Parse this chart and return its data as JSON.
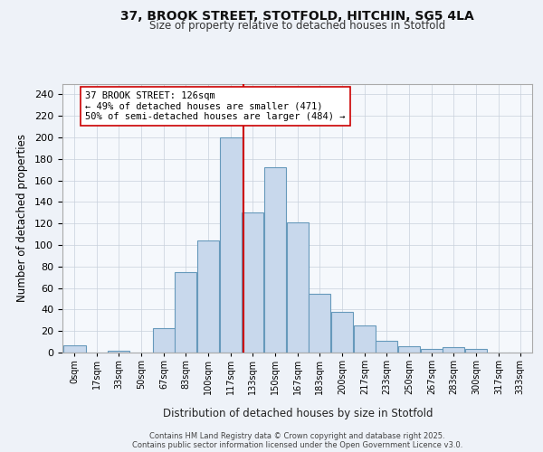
{
  "title1": "37, BROOK STREET, STOTFOLD, HITCHIN, SG5 4LA",
  "title2": "Size of property relative to detached houses in Stotfold",
  "xlabel": "Distribution of detached houses by size in Stotfold",
  "ylabel": "Number of detached properties",
  "footer": "Contains HM Land Registry data © Crown copyright and database right 2025.\nContains public sector information licensed under the Open Government Licence v3.0.",
  "bar_centers": [
    0,
    17,
    33,
    50,
    67,
    83,
    100,
    117,
    133,
    150,
    167,
    183,
    200,
    217,
    233,
    250,
    267,
    283,
    300,
    317,
    333
  ],
  "bar_heights": [
    7,
    0,
    2,
    0,
    23,
    75,
    104,
    200,
    130,
    172,
    121,
    55,
    38,
    25,
    11,
    6,
    3,
    5,
    3,
    0,
    0
  ],
  "bar_color": "#c8d8ec",
  "bar_edge_color": "#6699bb",
  "property_size": 126,
  "vline_color": "#cc0000",
  "annotation_text": "37 BROOK STREET: 126sqm\n← 49% of detached houses are smaller (471)\n50% of semi-detached houses are larger (484) →",
  "annotation_box_edge": "#cc0000",
  "annotation_box_face": "#ffffff",
  "ylim": [
    0,
    250
  ],
  "yticks": [
    0,
    20,
    40,
    60,
    80,
    100,
    120,
    140,
    160,
    180,
    200,
    220,
    240
  ],
  "xtick_labels": [
    "0sqm",
    "17sqm",
    "33sqm",
    "50sqm",
    "67sqm",
    "83sqm",
    "100sqm",
    "117sqm",
    "133sqm",
    "150sqm",
    "167sqm",
    "183sqm",
    "200sqm",
    "217sqm",
    "233sqm",
    "250sqm",
    "267sqm",
    "283sqm",
    "300sqm",
    "317sqm",
    "333sqm"
  ],
  "bg_color": "#eef2f8",
  "plot_bg_color": "#f5f8fc"
}
